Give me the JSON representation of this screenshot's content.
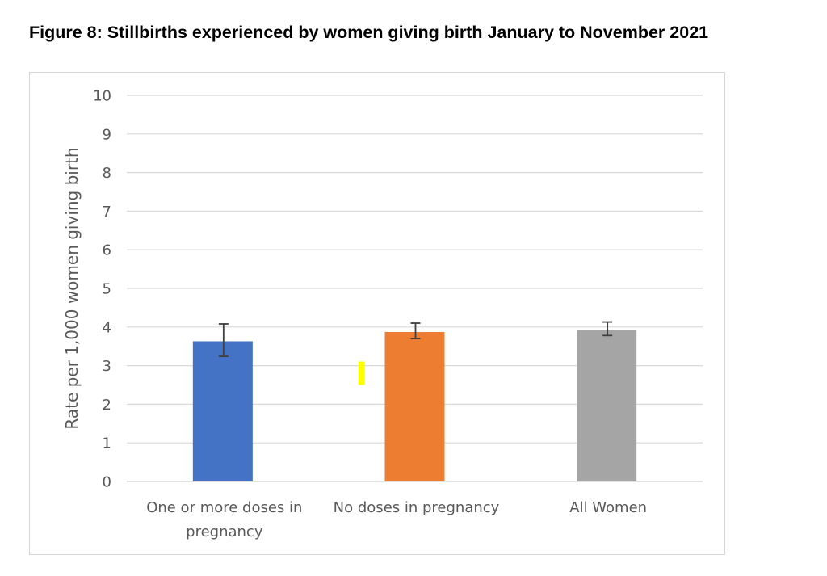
{
  "figure": {
    "title": "Figure 8: Stillbirths experienced by women giving birth January to November 2021"
  },
  "chart_data": {
    "type": "bar",
    "categories": [
      [
        "One or more doses in",
        "pregnancy"
      ],
      [
        "No doses in pregnancy"
      ],
      [
        "All Women"
      ]
    ],
    "values": [
      3.63,
      3.87,
      3.93
    ],
    "error_low": [
      3.24,
      3.7,
      3.78
    ],
    "error_high": [
      4.08,
      4.1,
      4.13
    ],
    "colors": [
      "#4472c4",
      "#ed7d31",
      "#a5a5a5"
    ],
    "ylabel": "Rate per 1,000 women giving birth",
    "xlabel": "",
    "ylim": [
      0,
      10
    ],
    "yticks": [
      "0",
      "1",
      "2",
      "3",
      "4",
      "5",
      "6",
      "7",
      "8",
      "9",
      "10"
    ],
    "grid": true,
    "legend": "none",
    "annotation_mark": {
      "color": "#ffff00",
      "y_range": [
        2.5,
        3.0
      ],
      "between_categories": [
        0,
        1
      ]
    }
  }
}
